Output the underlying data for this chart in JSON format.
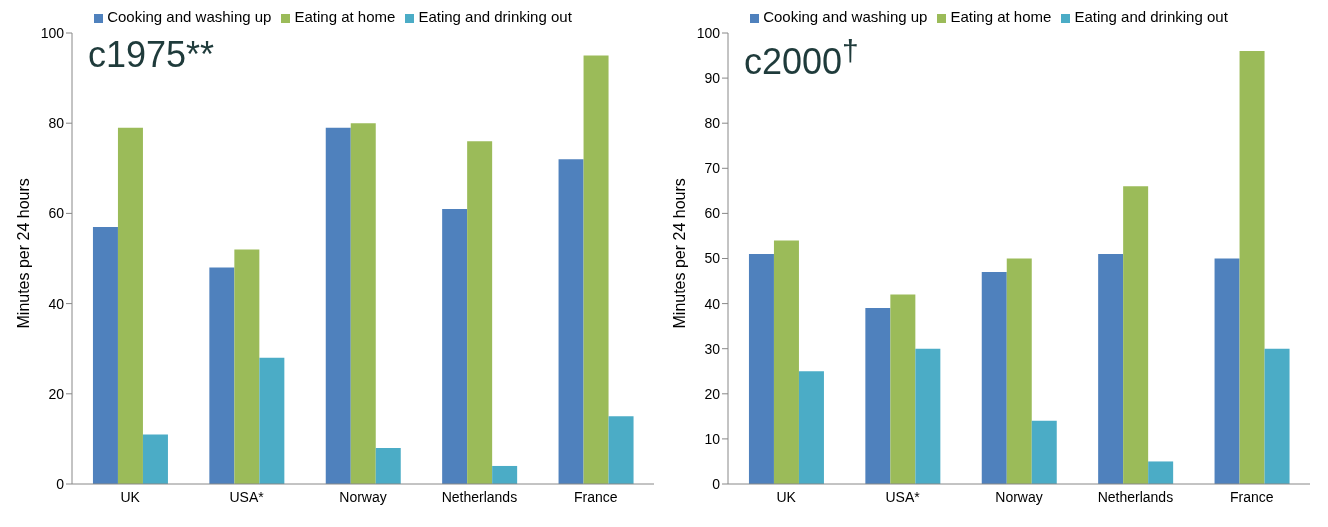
{
  "chart_data": [
    {
      "type": "bar",
      "title": "c1975**",
      "ylabel": "Minutes per 24 hours",
      "categories": [
        "UK",
        "USA*",
        "Norway",
        "Netherlands",
        "France"
      ],
      "series": [
        {
          "name": "Cooking and washing up",
          "color": "#4f81bd",
          "values": [
            57,
            48,
            79,
            61,
            72
          ]
        },
        {
          "name": "Eating at home",
          "color": "#9bbb59",
          "values": [
            79,
            52,
            80,
            76,
            95
          ]
        },
        {
          "name": "Eating and drinking out",
          "color": "#4bacc6",
          "values": [
            11,
            28,
            8,
            4,
            15
          ]
        }
      ],
      "ylim": [
        0,
        100
      ],
      "yticks": [
        0,
        20,
        40,
        60,
        80,
        100
      ],
      "grid": false,
      "legend": "top"
    },
    {
      "type": "bar",
      "title": "c2000$^{†}$",
      "ylabel": "Minutes per 24 hours",
      "categories": [
        "UK",
        "USA*",
        "Norway",
        "Netherlands",
        "France"
      ],
      "series": [
        {
          "name": "Cooking and washing up",
          "color": "#4f81bd",
          "values": [
            51,
            39,
            47,
            51,
            50
          ]
        },
        {
          "name": "Eating at home",
          "color": "#9bbb59",
          "values": [
            54,
            42,
            50,
            66,
            96
          ]
        },
        {
          "name": "Eating and drinking out",
          "color": "#4bacc6",
          "values": [
            25,
            30,
            14,
            5,
            30
          ]
        }
      ],
      "ylim": [
        0,
        100
      ],
      "yticks": [
        0,
        10,
        20,
        30,
        40,
        50,
        60,
        70,
        80,
        90,
        100
      ],
      "grid": false,
      "legend": "top"
    }
  ]
}
